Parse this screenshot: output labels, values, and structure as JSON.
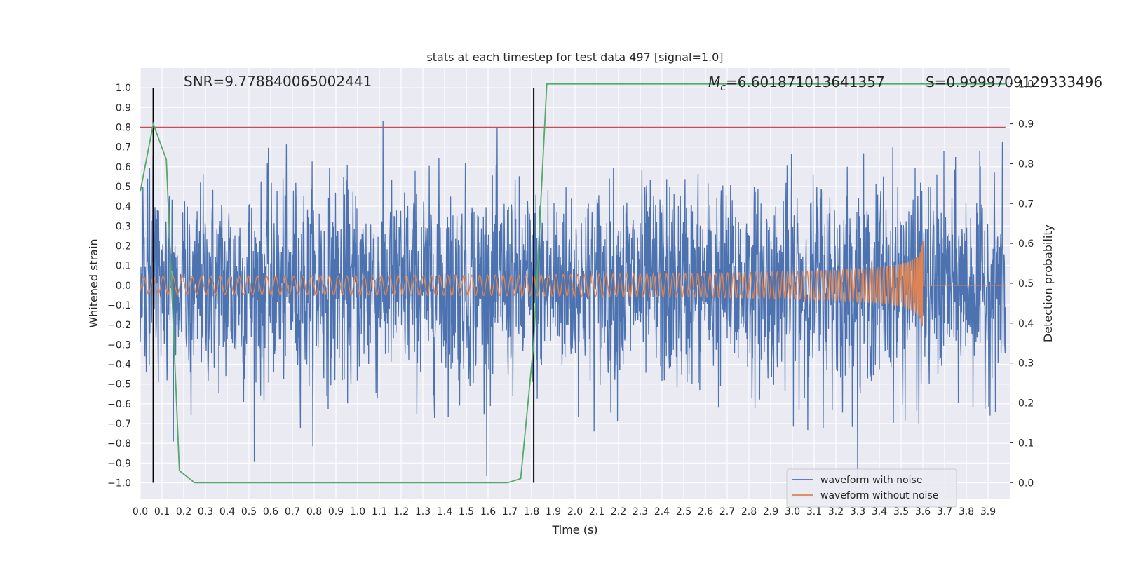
{
  "chart_data": {
    "type": "line",
    "title": "stats at each timestep for test data 497 [signal=1.0]",
    "xlabel": "Time (s)",
    "ylabel": "Whitened strain",
    "y2label": "Detection probability",
    "xlim": [
      0.0,
      4.0
    ],
    "ylim": [
      -1.08,
      1.1
    ],
    "y2lim": [
      -0.04,
      1.04
    ],
    "grid": true,
    "x_ticks": [
      "0.0",
      "0.1",
      "0.2",
      "0.3",
      "0.4",
      "0.5",
      "0.6",
      "0.7",
      "0.8",
      "0.9",
      "1.0",
      "1.1",
      "1.2",
      "1.3",
      "1.4",
      "1.5",
      "1.6",
      "1.7",
      "1.8",
      "1.9",
      "2.0",
      "2.1",
      "2.2",
      "2.3",
      "2.4",
      "2.5",
      "2.6",
      "2.7",
      "2.8",
      "2.9",
      "3.0",
      "3.1",
      "3.2",
      "3.3",
      "3.4",
      "3.5",
      "3.6",
      "3.7",
      "3.8",
      "3.9"
    ],
    "y_ticks": [
      "1.0",
      "0.9",
      "0.8",
      "0.7",
      "0.6",
      "0.5",
      "0.4",
      "0.3",
      "0.2",
      "0.1",
      "0.0",
      "−0.1",
      "−0.2",
      "−0.3",
      "−0.4",
      "−0.5",
      "−0.6",
      "−0.7",
      "−0.8",
      "−0.9",
      "−1.0"
    ],
    "y2_ticks": [
      "1.0",
      "0.9",
      "0.8",
      "0.7",
      "0.6",
      "0.5",
      "0.4",
      "0.3",
      "0.2",
      "0.1",
      "0.0"
    ],
    "annotations": {
      "snr": "SNR=9.778840065002441",
      "mc_symbol": "M",
      "mc_sub": "c",
      "mc_value": "=6.601871013641357",
      "s": "S=0.9999709129333496"
    },
    "threshold_y": 0.8,
    "vertical_lines_x": [
      0.06,
      1.81
    ],
    "series": [
      {
        "name": "waveform with noise",
        "color": "#4c72b0",
        "noise_amplitude": 0.25
      },
      {
        "name": "waveform without noise",
        "color": "#dd8452",
        "chirp_end_time": 3.6,
        "peak_amplitude": 0.35
      },
      {
        "color": "#55a868",
        "axis": "y2",
        "x": [
          0.0,
          0.06,
          0.12,
          0.18,
          0.25,
          0.4,
          1.0,
          1.5,
          1.69,
          1.75,
          1.81,
          1.87,
          2.0,
          3.0,
          3.98
        ],
        "y": [
          0.73,
          0.9,
          0.81,
          0.03,
          0.0,
          0.0,
          0.0,
          0.0,
          0.0,
          0.01,
          0.35,
          1.0,
          1.0,
          1.0,
          1.0
        ]
      }
    ],
    "legend_position": "lower-right",
    "colors": {
      "threshold": "#c44e52",
      "vline": "#000000",
      "background": "#eaeaf2",
      "grid": "#ffffff"
    }
  }
}
